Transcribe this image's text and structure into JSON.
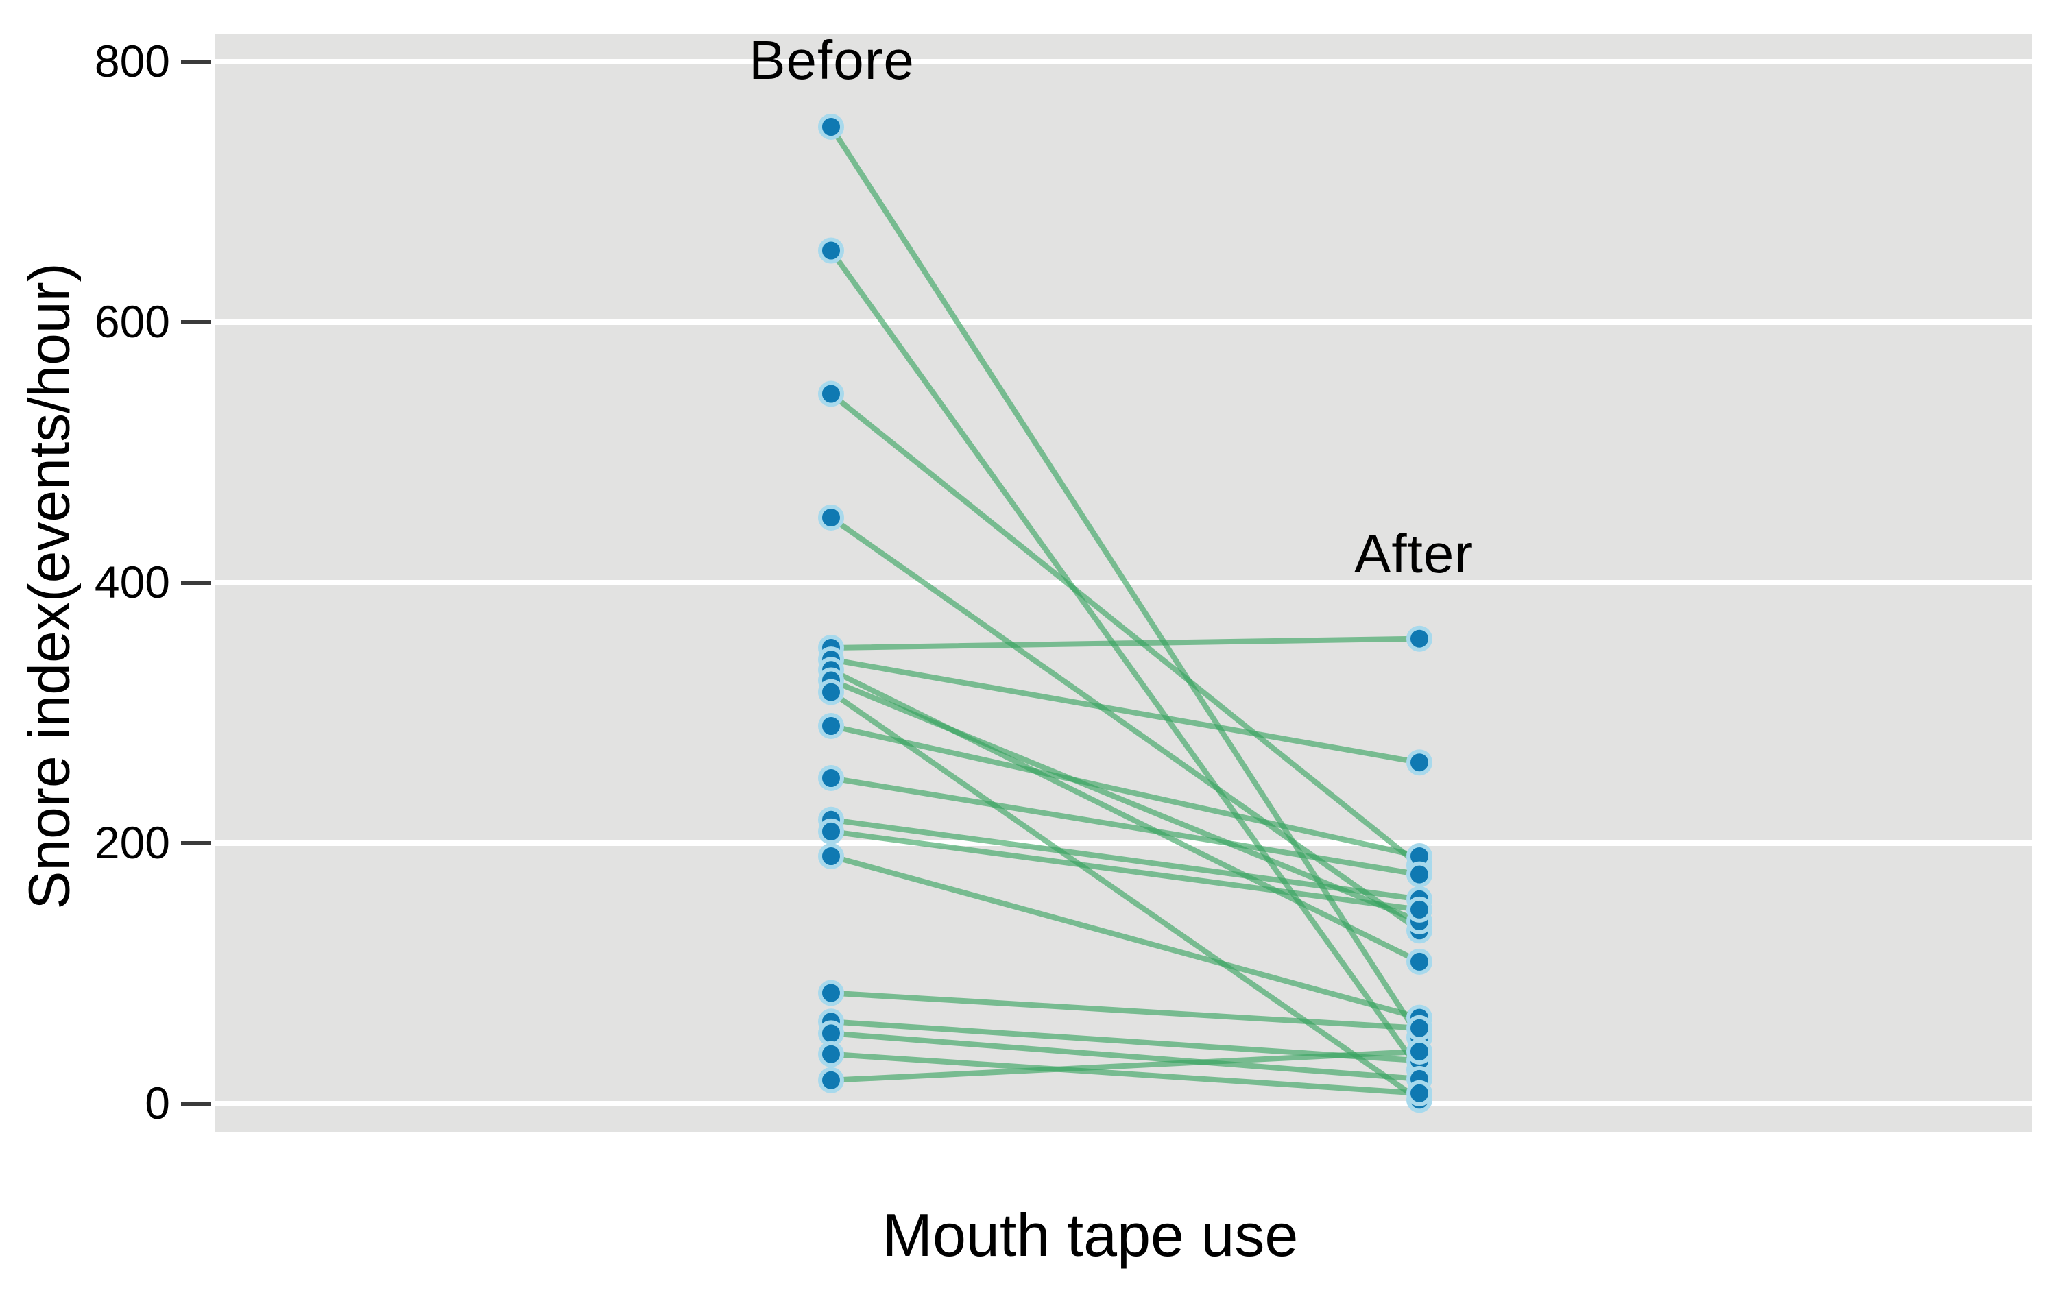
{
  "chart_data": {
    "type": "scatter",
    "subtype": "paired-slope-chart",
    "title": "",
    "xlabel": "Mouth tape use",
    "ylabel": "Snore index(events/hour)",
    "groups": [
      "Before",
      "After"
    ],
    "yticks": [
      0,
      200,
      400,
      600,
      800
    ],
    "ylim": [
      -22,
      820
    ],
    "grid": "horizontal-white-lines-on-gray-panel",
    "legend": "none",
    "series": [
      {
        "name": "patient-pairs",
        "note": "each pair is one line: snore index before vs after mouth tape use (values estimated from gridlines)",
        "pairs": [
          {
            "before": 750,
            "after": 51
          },
          {
            "before": 655,
            "after": 26
          },
          {
            "before": 545,
            "after": 183
          },
          {
            "before": 450,
            "after": 133
          },
          {
            "before": 350,
            "after": 357
          },
          {
            "before": 341,
            "after": 262
          },
          {
            "before": 333,
            "after": 109
          },
          {
            "before": 325,
            "after": 140
          },
          {
            "before": 316,
            "after": 3
          },
          {
            "before": 290,
            "after": 190
          },
          {
            "before": 250,
            "after": 176
          },
          {
            "before": 218,
            "after": 157
          },
          {
            "before": 209,
            "after": 149
          },
          {
            "before": 190,
            "after": 66
          },
          {
            "before": 85,
            "after": 58
          },
          {
            "before": 63,
            "after": 33
          },
          {
            "before": 54,
            "after": 19
          },
          {
            "before": 38,
            "after": 8
          },
          {
            "before": 18,
            "after": 40
          }
        ]
      }
    ],
    "colors": {
      "panel": "#e2e2e1",
      "gridline": "#ffffff",
      "line": "#35a35d",
      "dot_fill": "#0f79b2",
      "dot_halo": "#a8d9ec",
      "tick_mark": "#3a3a3a",
      "text": "#000000"
    }
  }
}
